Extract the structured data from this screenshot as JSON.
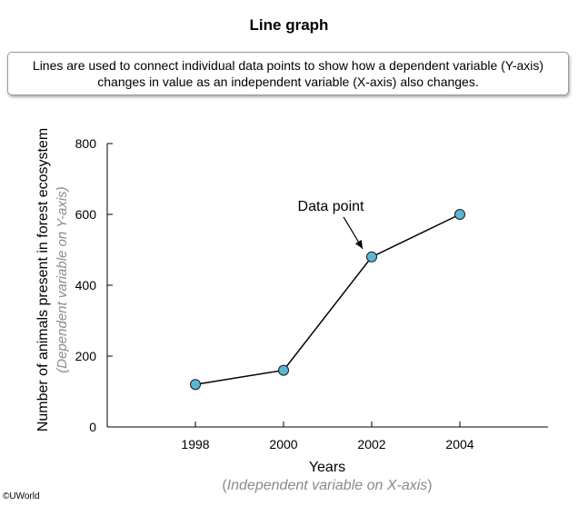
{
  "title": "Line graph",
  "description": "Lines are used to connect individual data points to show how a dependent variable (Y-axis) changes in value as an independent variable (X-axis) also changes.",
  "copyright": "©UWorld",
  "chart_data": {
    "type": "line",
    "x": [
      1998,
      2000,
      2002,
      2004
    ],
    "y": [
      120,
      160,
      480,
      600
    ],
    "ylabel": "Number of animals present in forest ecosystem",
    "ylabel_note": "(Dependent variable on Y-axis)",
    "xlabel": "Years",
    "xlabel_note_open": "(",
    "xlabel_note_text": "Independent variable on X-axis",
    "xlabel_note_close": ")",
    "ylim": [
      0,
      800
    ],
    "xlim": [
      1996,
      2006
    ],
    "yticks": [
      0,
      200,
      400,
      600,
      800
    ],
    "xticks": [
      1998,
      2000,
      2002,
      2004
    ],
    "grid": false,
    "annotation": {
      "text": "Data point",
      "target_index": 2
    },
    "colors": {
      "marker_fill": "#5bb6d3",
      "marker_stroke": "#1a1a1a",
      "line": "#000000"
    }
  }
}
